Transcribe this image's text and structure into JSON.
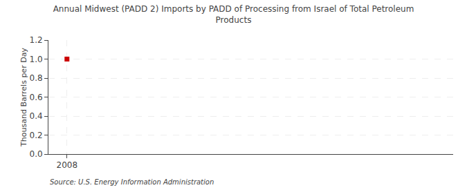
{
  "chart_data": {
    "type": "scatter",
    "title": "Annual Midwest (PADD 2) Imports by PADD of Processing from Israel of Total Petroleum\nProducts",
    "ylabel": "Thousand Barrels per Day",
    "annotations": [
      "Source: U.S. Energy Information Administration"
    ],
    "x": [
      2008
    ],
    "values": [
      1.0
    ],
    "color": "#cc0000",
    "marker": "square",
    "xlim": [
      2007.4,
      2020.5
    ],
    "xticks": [
      2008
    ],
    "ylim": [
      0.0,
      1.2
    ],
    "yticks": [
      {
        "value": 0.0,
        "label": "0.0"
      },
      0.2,
      0.4,
      0.6,
      0.8,
      {
        "value": 1.0,
        "label": "1.0"
      },
      1.2
    ],
    "grid": true
  }
}
